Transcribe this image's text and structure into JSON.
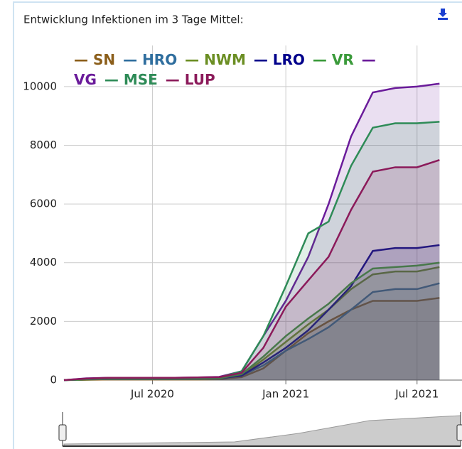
{
  "chart_data": {
    "type": "area",
    "title": "Entwicklung Infektionen im 3 Tage Mittel:",
    "x": [
      "2020-03",
      "2020-04",
      "2020-05",
      "2020-06",
      "2020-07",
      "2020-08",
      "2020-09",
      "2020-10",
      "2020-11",
      "2020-12",
      "2021-01",
      "2021-02",
      "2021-03",
      "2021-04",
      "2021-05",
      "2021-06",
      "2021-07",
      "2021-08"
    ],
    "xlim": [
      "2020-03",
      "2021-09"
    ],
    "xticks": [
      {
        "value": "2020-07",
        "label": "Jul 2020"
      },
      {
        "value": "2021-01",
        "label": "Jan 2021"
      },
      {
        "value": "2021-07",
        "label": "Jul 2021"
      }
    ],
    "ylim": [
      0,
      11400
    ],
    "yticks": [
      0,
      2000,
      4000,
      6000,
      8000,
      10000
    ],
    "grid": true,
    "legend": "top-left",
    "series": [
      {
        "name": "SN",
        "color": "#8b5e1a",
        "values": [
          0,
          10,
          20,
          20,
          20,
          20,
          20,
          30,
          100,
          400,
          1000,
          1600,
          2000,
          2400,
          2700,
          2700,
          2700,
          2800
        ]
      },
      {
        "name": "HRO",
        "color": "#2f6e9e",
        "values": [
          0,
          20,
          40,
          40,
          40,
          40,
          40,
          50,
          150,
          500,
          1000,
          1400,
          1800,
          2400,
          3000,
          3100,
          3100,
          3300
        ]
      },
      {
        "name": "NWM",
        "color": "#6b8e23",
        "values": [
          0,
          20,
          40,
          40,
          40,
          40,
          40,
          50,
          160,
          700,
          1300,
          1900,
          2400,
          3100,
          3600,
          3700,
          3700,
          3850
        ]
      },
      {
        "name": "LRO",
        "color": "#00008b",
        "values": [
          0,
          30,
          50,
          50,
          50,
          50,
          50,
          60,
          150,
          600,
          1100,
          1700,
          2400,
          3200,
          4400,
          4500,
          4500,
          4600
        ]
      },
      {
        "name": "VR",
        "color": "#3a9a3a",
        "values": [
          0,
          30,
          50,
          50,
          50,
          50,
          50,
          60,
          200,
          800,
          1500,
          2100,
          2600,
          3300,
          3800,
          3850,
          3900,
          4000
        ]
      },
      {
        "name": "VG",
        "color": "#6a1b9a",
        "values": [
          0,
          60,
          80,
          80,
          80,
          80,
          90,
          110,
          300,
          1500,
          2700,
          4200,
          6000,
          8300,
          9800,
          9950,
          10000,
          10100
        ]
      },
      {
        "name": "MSE",
        "color": "#2e8b57",
        "values": [
          0,
          40,
          60,
          60,
          60,
          60,
          70,
          90,
          300,
          1500,
          3200,
          5000,
          5400,
          7300,
          8600,
          8750,
          8750,
          8800
        ]
      },
      {
        "name": "LUP",
        "color": "#8b1a5a",
        "values": [
          0,
          50,
          80,
          80,
          80,
          80,
          90,
          100,
          250,
          1100,
          2500,
          3400,
          4200,
          5800,
          7100,
          7250,
          7250,
          7500
        ]
      }
    ]
  }
}
